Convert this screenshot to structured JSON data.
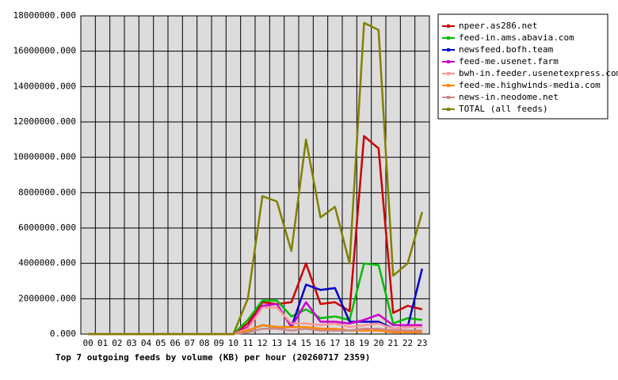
{
  "chart_data": {
    "type": "line",
    "title": "Top 7 outgoing feeds by volume (KB) per hour (20260717 2359)",
    "categories": [
      "00",
      "01",
      "02",
      "03",
      "04",
      "05",
      "06",
      "07",
      "08",
      "09",
      "10",
      "11",
      "12",
      "13",
      "14",
      "15",
      "16",
      "17",
      "18",
      "19",
      "20",
      "21",
      "22",
      "23"
    ],
    "series": [
      {
        "name": "npeer.as286.net",
        "color": "#cc0000",
        "values": [
          0,
          0,
          0,
          0,
          0,
          0,
          0,
          0,
          0,
          0,
          0,
          600000,
          1800000,
          1700000,
          1800000,
          4000000,
          1700000,
          1800000,
          1300000,
          11200000,
          10500000,
          1200000,
          1600000,
          1400000
        ]
      },
      {
        "name": "feed-in.ams.abavia.com",
        "color": "#00bb00",
        "values": [
          0,
          0,
          0,
          0,
          0,
          0,
          0,
          0,
          0,
          0,
          0,
          800000,
          1900000,
          1900000,
          1000000,
          1400000,
          900000,
          1000000,
          800000,
          4000000,
          3900000,
          600000,
          900000,
          800000
        ]
      },
      {
        "name": "newsfeed.bofh.team",
        "color": "#0000cc",
        "values": [
          0,
          0,
          0,
          0,
          0,
          0,
          0,
          0,
          0,
          0,
          0,
          200000,
          500000,
          400000,
          400000,
          2800000,
          2500000,
          2600000,
          700000,
          700000,
          700000,
          300000,
          400000,
          3700000
        ]
      },
      {
        "name": "feed-me.usenet.farm",
        "color": "#cc00cc",
        "values": [
          0,
          0,
          0,
          0,
          0,
          0,
          0,
          0,
          0,
          0,
          0,
          400000,
          1600000,
          1700000,
          400000,
          1800000,
          700000,
          700000,
          600000,
          800000,
          1100000,
          500000,
          500000,
          500000
        ]
      },
      {
        "name": "bwh-in.feeder.usenetexpress.com",
        "color": "#ff9999",
        "values": [
          0,
          0,
          0,
          0,
          0,
          0,
          0,
          0,
          0,
          0,
          0,
          300000,
          1500000,
          1500000,
          600000,
          600000,
          500000,
          600000,
          400000,
          500000,
          600000,
          300000,
          400000,
          400000
        ]
      },
      {
        "name": "feed-me.highwinds-media.com",
        "color": "#ff8800",
        "values": [
          0,
          0,
          0,
          0,
          0,
          0,
          0,
          0,
          0,
          0,
          0,
          200000,
          500000,
          400000,
          400000,
          400000,
          300000,
          300000,
          200000,
          200000,
          200000,
          100000,
          100000,
          100000
        ]
      },
      {
        "name": "news-in.neodome.net",
        "color": "#cc8888",
        "values": [
          0,
          0,
          0,
          0,
          0,
          0,
          0,
          0,
          0,
          0,
          0,
          100000,
          300000,
          300000,
          200000,
          300000,
          200000,
          200000,
          200000,
          300000,
          300000,
          200000,
          200000,
          200000
        ]
      },
      {
        "name": "TOTAL (all feeds)",
        "color": "#808000",
        "values": [
          0,
          0,
          0,
          0,
          0,
          0,
          0,
          0,
          0,
          0,
          0,
          2000000,
          7800000,
          7500000,
          4700000,
          11000000,
          6600000,
          7200000,
          4000000,
          17600000,
          17200000,
          3300000,
          4000000,
          6900000
        ]
      }
    ],
    "ylim": [
      0,
      18000000
    ],
    "yticks": [
      {
        "value": 0,
        "label": "0.000"
      },
      {
        "value": 2000000,
        "label": "2000000.000"
      },
      {
        "value": 4000000,
        "label": "4000000.000"
      },
      {
        "value": 6000000,
        "label": "6000000.000"
      },
      {
        "value": 8000000,
        "label": "8000000.000"
      },
      {
        "value": 10000000,
        "label": "10000000.000"
      },
      {
        "value": 12000000,
        "label": "12000000.000"
      },
      {
        "value": 14000000,
        "label": "14000000.000"
      },
      {
        "value": 16000000,
        "label": "16000000.000"
      },
      {
        "value": 18000000,
        "label": "18000000.000"
      }
    ],
    "grid": true,
    "legend": "right"
  }
}
